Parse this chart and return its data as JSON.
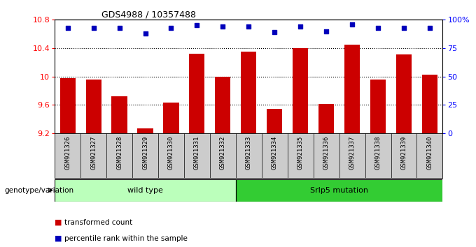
{
  "title": "GDS4988 / 10357488",
  "samples": [
    "GSM921326",
    "GSM921327",
    "GSM921328",
    "GSM921329",
    "GSM921330",
    "GSM921331",
    "GSM921332",
    "GSM921333",
    "GSM921334",
    "GSM921335",
    "GSM921336",
    "GSM921337",
    "GSM921338",
    "GSM921339",
    "GSM921340"
  ],
  "transformed_counts": [
    9.98,
    9.96,
    9.72,
    9.27,
    9.63,
    10.32,
    10.0,
    10.35,
    9.55,
    10.4,
    9.61,
    10.45,
    9.96,
    10.31,
    10.03
  ],
  "percentile_ranks": [
    93,
    93,
    93,
    88,
    93,
    95,
    94,
    94,
    89,
    94,
    90,
    96,
    93,
    93,
    93
  ],
  "ylim_left": [
    9.2,
    10.8
  ],
  "ylim_right": [
    0,
    100
  ],
  "yticks_left": [
    9.2,
    9.6,
    10.0,
    10.4,
    10.8
  ],
  "ytick_labels_left": [
    "9.2",
    "9.6",
    "10",
    "10.4",
    "10.8"
  ],
  "yticks_right": [
    0,
    25,
    50,
    75,
    100
  ],
  "ytick_labels_right": [
    "0",
    "25",
    "50",
    "75",
    "100%"
  ],
  "bar_color": "#cc0000",
  "dot_color": "#0000bb",
  "groups": [
    {
      "label": "wild type",
      "start": 0,
      "end": 7,
      "color": "#bbffbb"
    },
    {
      "label": "Srlp5 mutation",
      "start": 7,
      "end": 15,
      "color": "#33cc33"
    }
  ],
  "legend_items": [
    {
      "label": "transformed count",
      "color": "#cc0000"
    },
    {
      "label": "percentile rank within the sample",
      "color": "#0000bb"
    }
  ],
  "genotype_label": "genotype/variation",
  "plot_bg": "#ffffff",
  "xticklabel_bg": "#cccccc"
}
